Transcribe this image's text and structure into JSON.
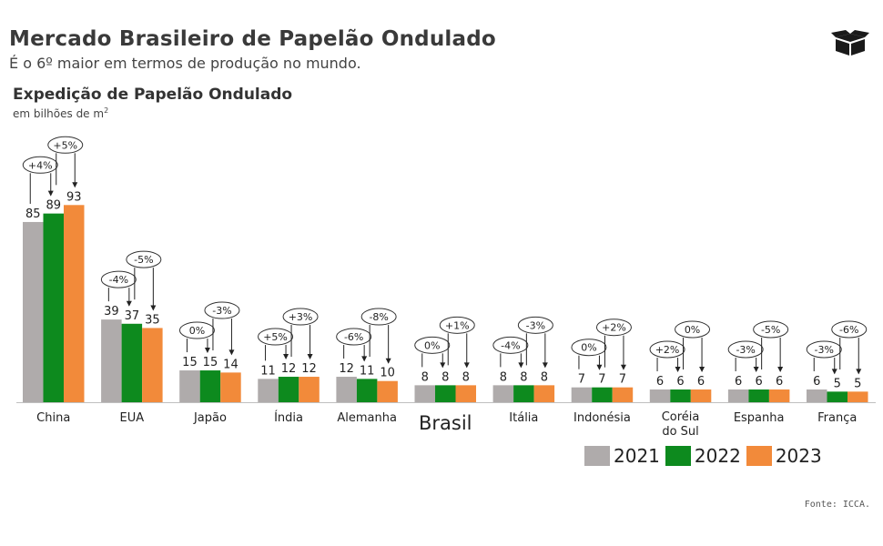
{
  "header": {
    "title": "Mercado Brasileiro de Papelão Ondulado",
    "subtitle": "É o 6º maior em termos de produção no mundo."
  },
  "source": "Fonte: ICCA.",
  "icons": {
    "logo": "box-icon"
  },
  "chart_data": {
    "type": "bar",
    "title": "Expedição de Papelão Ondulado",
    "unit_label": "em bilhões de m",
    "unit_sup": "2",
    "xlabel": "",
    "ylabel": "",
    "ylim": [
      0,
      100
    ],
    "grid": false,
    "legend_position": "bottom-right",
    "categories": [
      {
        "label": "China",
        "highlight": false
      },
      {
        "label": "EUA",
        "highlight": false
      },
      {
        "label": "Japão",
        "highlight": false
      },
      {
        "label": "Índia",
        "highlight": false
      },
      {
        "label": "Alemanha",
        "highlight": false
      },
      {
        "label": "Brasil",
        "highlight": true
      },
      {
        "label": "Itália",
        "highlight": false
      },
      {
        "label": "Indonésia",
        "highlight": false
      },
      {
        "label": "Coréia do Sul",
        "highlight": false
      },
      {
        "label": "Espanha",
        "highlight": false
      },
      {
        "label": "França",
        "highlight": false
      }
    ],
    "series": [
      {
        "name": "2021",
        "color": "#afabab",
        "values": [
          85,
          39,
          15,
          11,
          12,
          8,
          8,
          7,
          6,
          6,
          6
        ]
      },
      {
        "name": "2022",
        "color": "#0d8a1e",
        "values": [
          89,
          37,
          15,
          12,
          11,
          8,
          8,
          7,
          6,
          6,
          5
        ]
      },
      {
        "name": "2023",
        "color": "#f28a3a",
        "values": [
          93,
          35,
          14,
          12,
          10,
          8,
          8,
          7,
          6,
          6,
          5
        ]
      }
    ],
    "growth_annotations": [
      {
        "y2022": "+4%",
        "y2023": "+5%"
      },
      {
        "y2022": "-4%",
        "y2023": "-5%"
      },
      {
        "y2022": "0%",
        "y2023": "-3%"
      },
      {
        "y2022": "+5%",
        "y2023": "+3%"
      },
      {
        "y2022": "-6%",
        "y2023": "-8%"
      },
      {
        "y2022": "0%",
        "y2023": "+1%"
      },
      {
        "y2022": "-4%",
        "y2023": "-3%"
      },
      {
        "y2022": "0%",
        "y2023": "+2%"
      },
      {
        "y2022": "+2%",
        "y2023": "0%"
      },
      {
        "y2022": "-3%",
        "y2023": "-5%"
      },
      {
        "y2022": "-3%",
        "y2023": "-6%"
      }
    ]
  }
}
